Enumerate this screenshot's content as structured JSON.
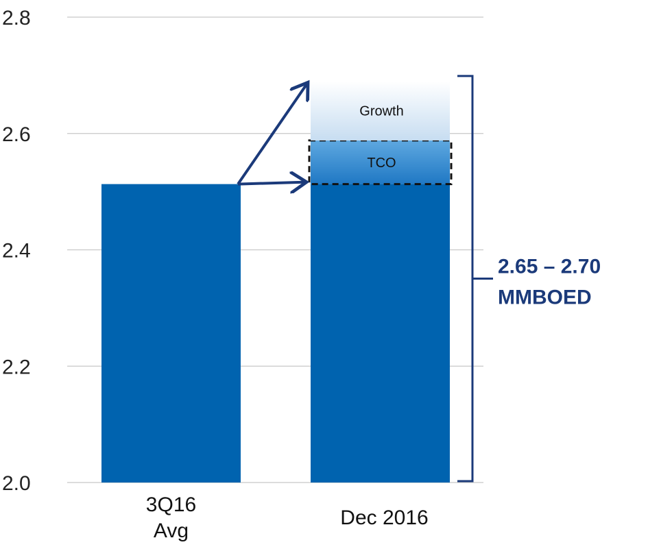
{
  "chart_data": {
    "type": "bar",
    "ylim": [
      2.0,
      2.8
    ],
    "yticks": [
      "2.0",
      "2.2",
      "2.4",
      "2.6",
      "2.8"
    ],
    "grid": true,
    "categories": [
      {
        "lines": [
          "3Q16",
          "Avg"
        ]
      },
      {
        "lines": [
          "Dec 2016"
        ]
      }
    ],
    "bars": [
      {
        "category": "3Q16 Avg",
        "value": 2.513
      },
      {
        "category": "Dec 2016",
        "base_value": 2.513,
        "segments": [
          {
            "label": "TCO",
            "from": 2.513,
            "to": 2.588
          },
          {
            "label": "Growth",
            "from": 2.588,
            "to": 2.69
          }
        ]
      }
    ],
    "range_annotation": {
      "from": 2.0,
      "to": 2.7,
      "lines": [
        "2.65 – 2.70",
        "MMBOED"
      ]
    },
    "colors": {
      "bar": "#0063AF",
      "arrow": "#1B3A7A",
      "grid": "#C8C8C8",
      "tco_top": "#5FA8E0",
      "tco_bottom": "#1F78C4",
      "growth_top": "#FFFFFF",
      "growth_bottom": "#C7DDF1"
    }
  }
}
